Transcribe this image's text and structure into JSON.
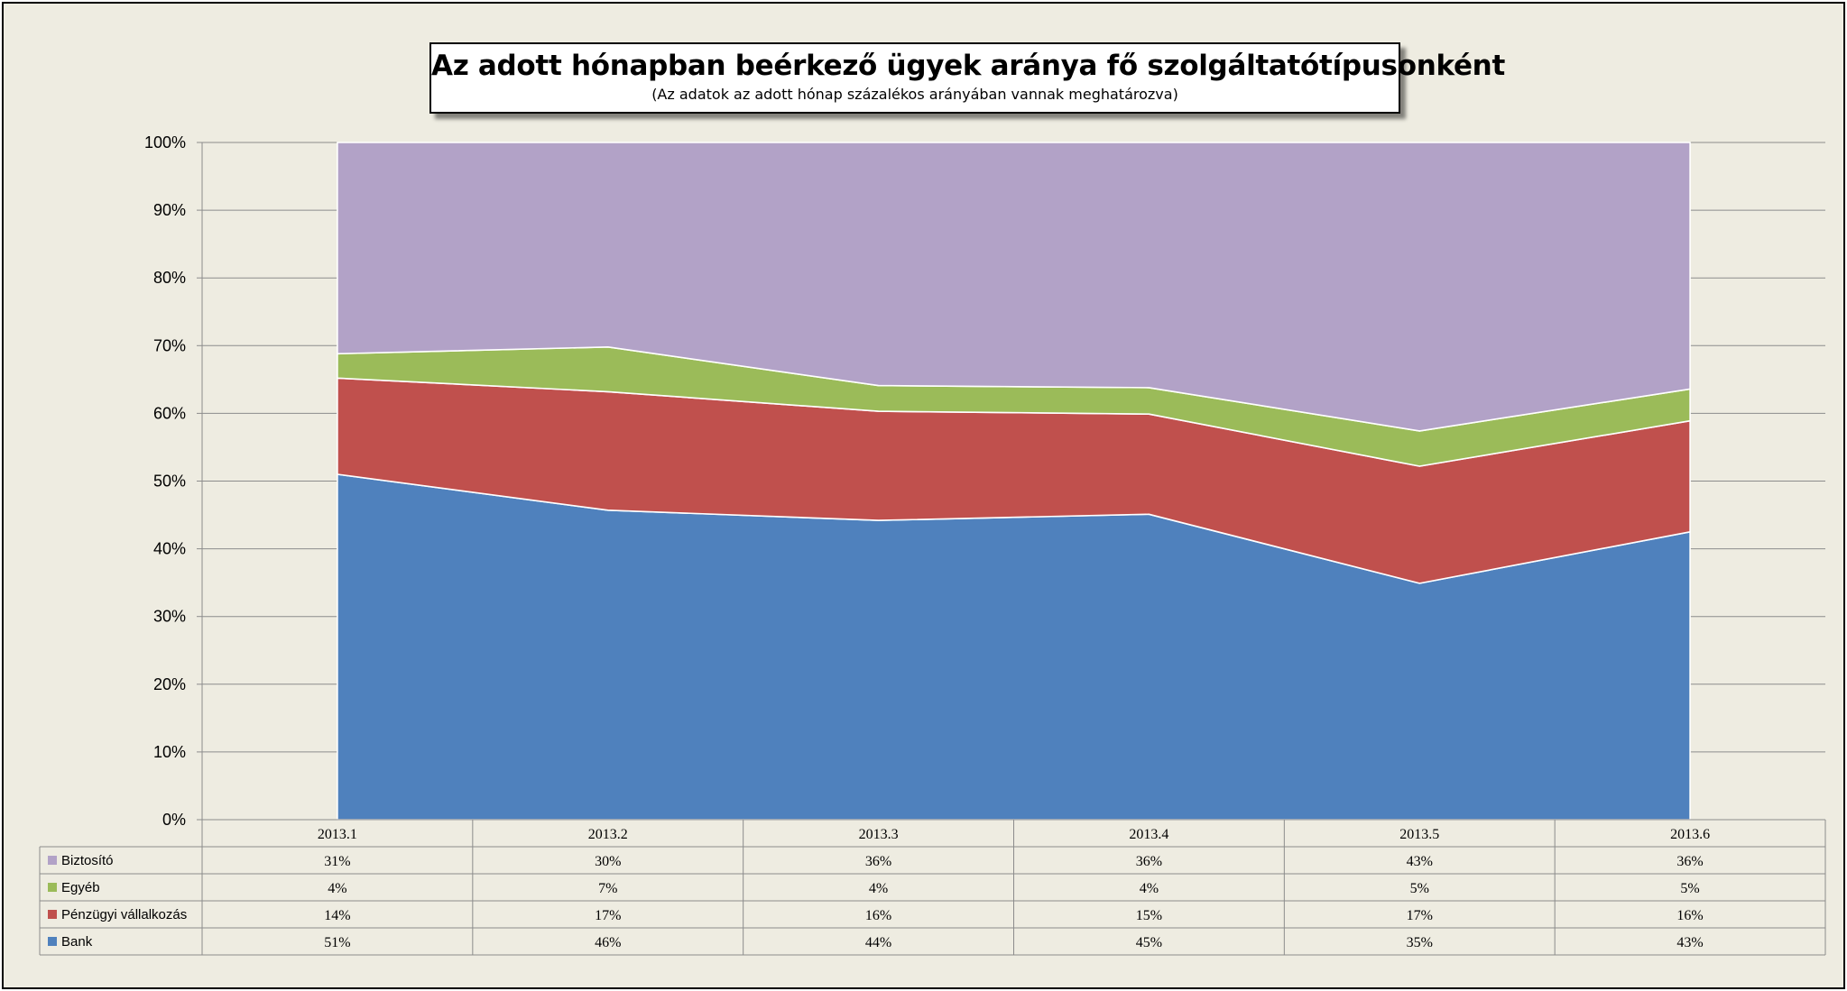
{
  "title": "Az adott hónapban beérkező ügyek aránya fő szolgáltatótípusonként",
  "subtitle": "(Az adatok az adott hónap százalékos arányában vannak meghatározva)",
  "chart_data": {
    "type": "area",
    "stacked": true,
    "categories": [
      "2013.1",
      "2013.2",
      "2013.3",
      "2013.4",
      "2013.5",
      "2013.6"
    ],
    "y_tick_labels": [
      "0%",
      "10%",
      "20%",
      "30%",
      "40%",
      "50%",
      "60%",
      "70%",
      "80%",
      "90%",
      "100%"
    ],
    "ylim": [
      0,
      100
    ],
    "grid": true,
    "legend_placement": "data-table-left",
    "series": [
      {
        "name": "Bank",
        "color": "#4f81bd",
        "values": [
          51,
          45.7,
          44.2,
          45.1,
          34.9,
          42.5
        ],
        "labels": [
          "51%",
          "46%",
          "44%",
          "45%",
          "35%",
          "43%"
        ]
      },
      {
        "name": "Pénzügyi vállalkozás",
        "color": "#c0504d",
        "values": [
          14.2,
          17.5,
          16.1,
          14.8,
          17.3,
          16.4
        ],
        "labels": [
          "14%",
          "17%",
          "16%",
          "15%",
          "17%",
          "16%"
        ]
      },
      {
        "name": "Egyéb",
        "color": "#9bbb59",
        "values": [
          3.6,
          6.6,
          3.8,
          3.9,
          5.2,
          4.7
        ],
        "labels": [
          "4%",
          "7%",
          "4%",
          "4%",
          "5%",
          "5%"
        ]
      },
      {
        "name": "Biztosító",
        "color": "#b2a2c7",
        "values": [
          31.2,
          30.2,
          35.9,
          36.2,
          42.6,
          36.4
        ],
        "labels": [
          "31%",
          "30%",
          "36%",
          "36%",
          "43%",
          "36%"
        ]
      }
    ],
    "table_row_order": [
      "Biztosító",
      "Egyéb",
      "Pénzügyi vállalkozás",
      "Bank"
    ]
  }
}
